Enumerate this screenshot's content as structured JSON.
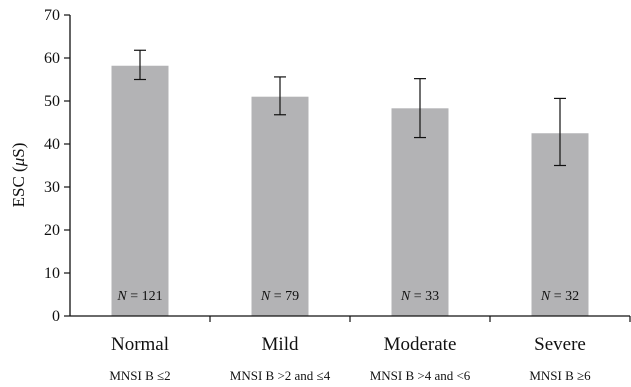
{
  "chart_data": {
    "type": "bar",
    "ylabel": "ESC (",
    "ylabel_unit_symbol": "μ",
    "ylabel_unit_rest": "S)",
    "ylim": [
      0,
      70
    ],
    "yticks": [
      "0",
      "10",
      "20",
      "30",
      "40",
      "50",
      "60",
      "70"
    ],
    "categories": [
      "Normal",
      "Mild",
      "Moderate",
      "Severe"
    ],
    "subcategories": [
      "MNSI B  ≤2",
      "MNSI B  >2 and ≤4",
      "MNSI B  >4 and <6",
      "MNSI B  ≥6"
    ],
    "values": [
      58.2,
      51.0,
      48.3,
      42.5
    ],
    "error_low": [
      55.0,
      46.8,
      41.5,
      35.0
    ],
    "error_high": [
      61.8,
      55.6,
      55.2,
      50.6
    ],
    "n_prefix": "N",
    "n_values": [
      "= 121",
      "= 79",
      "= 33",
      "= 32"
    ],
    "bar_color": "#b3b3b5",
    "grid": false
  }
}
